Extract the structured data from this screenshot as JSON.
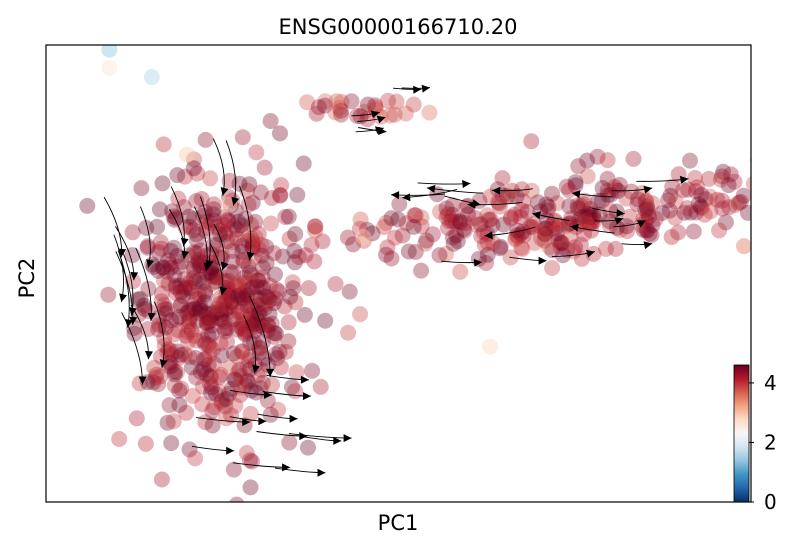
{
  "chart_data": {
    "type": "scatter",
    "title": "ENSG00000166710.20",
    "xlabel": "PC1",
    "ylabel": "PC2",
    "x_ticks": "none",
    "y_ticks": "none",
    "grid": false,
    "overlay": "velocity streamlines (black arrows)",
    "colorbar": {
      "colormap": "RdBu_r",
      "range": [
        0,
        4.6
      ],
      "ticks": [
        0,
        2,
        4
      ],
      "tick_labels": [
        "0",
        "2",
        "4"
      ],
      "placement": "bottom-right, inside axes",
      "color_stops": [
        "#053061",
        "#2166ac",
        "#4393c3",
        "#92c5de",
        "#d1e5f0",
        "#f7f7f7",
        "#fddbc7",
        "#f4a582",
        "#d6604d",
        "#b2182b",
        "#67001f"
      ]
    },
    "groups": [
      {
        "name": "left elongated cluster",
        "center": [
          0.25,
          0.44
        ],
        "spread": [
          0.07,
          0.28
        ],
        "tilt": 0.45,
        "approx_value": 4.2
      },
      {
        "name": "upper-right cluster",
        "center": [
          0.73,
          0.62
        ],
        "spread": [
          0.17,
          0.09
        ],
        "tilt": -0.1,
        "approx_value": 4.1
      },
      {
        "name": "top-center small group",
        "center": [
          0.45,
          0.86
        ],
        "spread": [
          0.05,
          0.03
        ],
        "tilt": 0.0,
        "approx_value": 3.9
      }
    ],
    "highlighted_points": [
      {
        "x": 0.09,
        "y": 0.99,
        "value": 1.4
      },
      {
        "x": 0.15,
        "y": 0.93,
        "value": 1.6
      },
      {
        "x": 0.09,
        "y": 0.95,
        "value": 2.6
      },
      {
        "x": 0.2,
        "y": 0.76,
        "value": 2.9
      },
      {
        "x": 0.26,
        "y": 0.65,
        "value": 2.8
      },
      {
        "x": 0.45,
        "y": 0.58,
        "value": 2.9
      },
      {
        "x": 0.63,
        "y": 0.34,
        "value": 2.8
      },
      {
        "x": 0.99,
        "y": 0.56,
        "value": 3.5
      }
    ]
  }
}
